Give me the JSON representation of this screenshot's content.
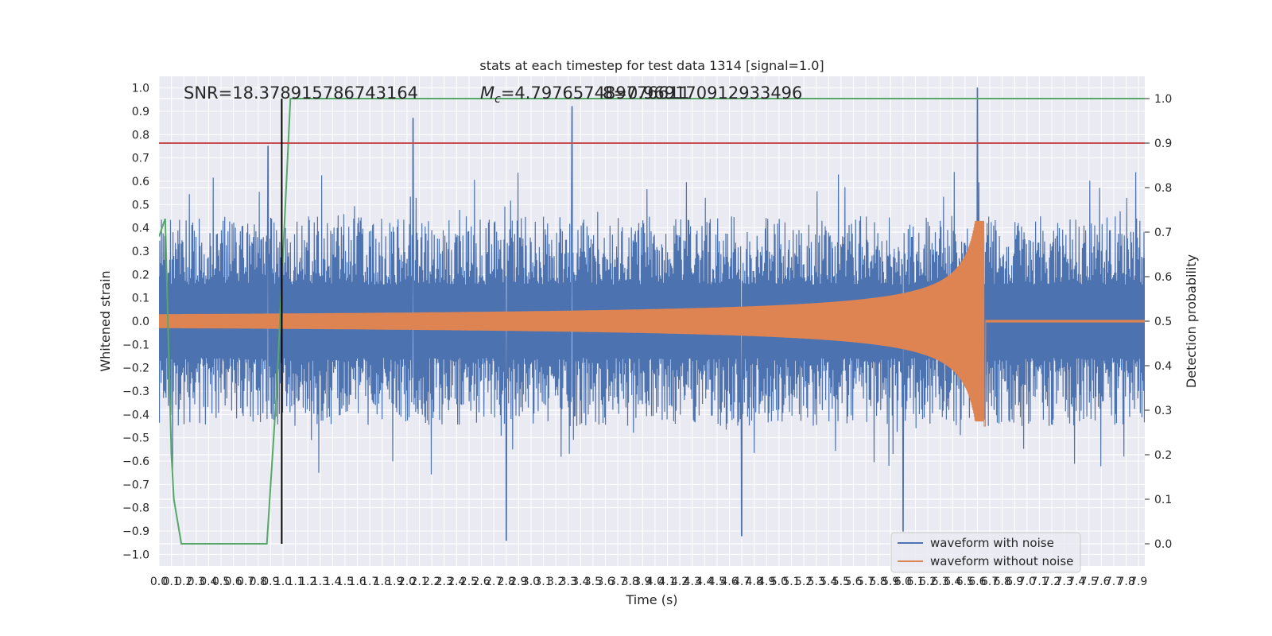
{
  "chart_data": {
    "type": "line",
    "title": "stats at each timestep for test data 1314 [signal=1.0]",
    "xlabel": "Time (s)",
    "ylabel_left": "Whitened strain",
    "ylabel_right": "Detection probability",
    "xlim": [
      0.0,
      7.95
    ],
    "ylim_left": [
      -1.05,
      1.05
    ],
    "ylim_right": [
      -0.05,
      1.05
    ],
    "x_ticks": [
      "0.0",
      "0.1",
      "0.2",
      "0.3",
      "0.4",
      "0.5",
      "0.6",
      "0.7",
      "0.8",
      "0.9",
      "1.0",
      "1.1",
      "1.2",
      "1.3",
      "1.4",
      "1.5",
      "1.6",
      "1.7",
      "1.8",
      "1.9",
      "2.0",
      "2.1",
      "2.2",
      "2.3",
      "2.4",
      "2.5",
      "2.6",
      "2.7",
      "2.8",
      "2.9",
      "3.0",
      "3.1",
      "3.2",
      "3.3",
      "3.4",
      "3.5",
      "3.6",
      "3.7",
      "3.8",
      "3.9",
      "4.0",
      "4.1",
      "4.2",
      "4.3",
      "4.4",
      "4.5",
      "4.6",
      "4.7",
      "4.8",
      "4.9",
      "5.0",
      "5.1",
      "5.2",
      "5.3",
      "5.4",
      "5.5",
      "5.6",
      "5.7",
      "5.8",
      "5.9",
      "6.0",
      "6.1",
      "6.2",
      "6.3",
      "6.4",
      "6.5",
      "6.6",
      "6.7",
      "6.8",
      "6.9",
      "7.0",
      "7.1",
      "7.2",
      "7.3",
      "7.4",
      "7.5",
      "7.6",
      "7.7",
      "7.8",
      "7.9"
    ],
    "y_ticks_left": [
      "−1.0",
      "−0.9",
      "−0.8",
      "−0.7",
      "−0.6",
      "−0.5",
      "−0.4",
      "−0.3",
      "−0.2",
      "−0.1",
      "0.0",
      "0.1",
      "0.2",
      "0.3",
      "0.4",
      "0.5",
      "0.6",
      "0.7",
      "0.8",
      "0.9",
      "1.0"
    ],
    "y_ticks_right": [
      "0.0",
      "0.1",
      "0.2",
      "0.3",
      "0.4",
      "0.5",
      "0.6",
      "0.7",
      "0.8",
      "0.9",
      "1.0"
    ],
    "annotations": {
      "snr": "SNR=18.378915786743164",
      "mc_prefix": "M",
      "mc_sub": "c",
      "mc_value": "=4.797657489776611",
      "overlap": "8=0.969170912933496"
    },
    "vertical_marker_x": 0.99,
    "threshold_probability": 0.9,
    "series": [
      {
        "name": "waveform with noise",
        "axis": "left",
        "color": "#4c72b0",
        "envelope": {
          "typical_amplitude": 0.45,
          "peaks": [
            [
              0.88,
              0.75
            ],
            [
              2.05,
              0.87
            ],
            [
              3.33,
              0.92
            ],
            [
              6.6,
              1.0
            ]
          ],
          "troughs": [
            [
              2.8,
              -0.94
            ],
            [
              4.7,
              -0.92
            ],
            [
              6.0,
              -0.9
            ]
          ]
        }
      },
      {
        "name": "waveform without noise",
        "axis": "left",
        "color": "#dd8452",
        "chirp": {
          "start_amplitude": 0.03,
          "peak_time": 6.66,
          "peak_amplitude": 0.43,
          "min_at_merger": -0.45,
          "after_merger_amplitude": 0.005
        }
      },
      {
        "name": "",
        "axis": "right",
        "color": "#55a868",
        "x": [
          0.0,
          0.05,
          0.1,
          0.12,
          0.18,
          0.26,
          0.3,
          0.4,
          0.5,
          0.6,
          0.7,
          0.8,
          0.87,
          0.95,
          1.0,
          1.06,
          2.0,
          3.0,
          4.0,
          5.0,
          6.0,
          7.0,
          7.95
        ],
        "values": [
          0.69,
          0.73,
          0.2,
          0.1,
          0.0,
          -0.0,
          0.0,
          0.0,
          0.0,
          0.0,
          0.0,
          0.0,
          0.0,
          0.35,
          0.65,
          1.0,
          1.0,
          1.0,
          1.0,
          1.0,
          1.0,
          1.0,
          1.0
        ]
      },
      {
        "name": "",
        "axis": "right",
        "color": "#c44e52",
        "x": [
          0.0,
          7.95
        ],
        "values": [
          0.9,
          0.9
        ]
      }
    ],
    "legend": {
      "placement": "lower-right",
      "entries": [
        "waveform with noise",
        "waveform without noise"
      ]
    },
    "grid": true,
    "colors": {
      "plot_bg": "#eaeaf2",
      "grid": "#ffffff",
      "marker": "#000000"
    }
  }
}
